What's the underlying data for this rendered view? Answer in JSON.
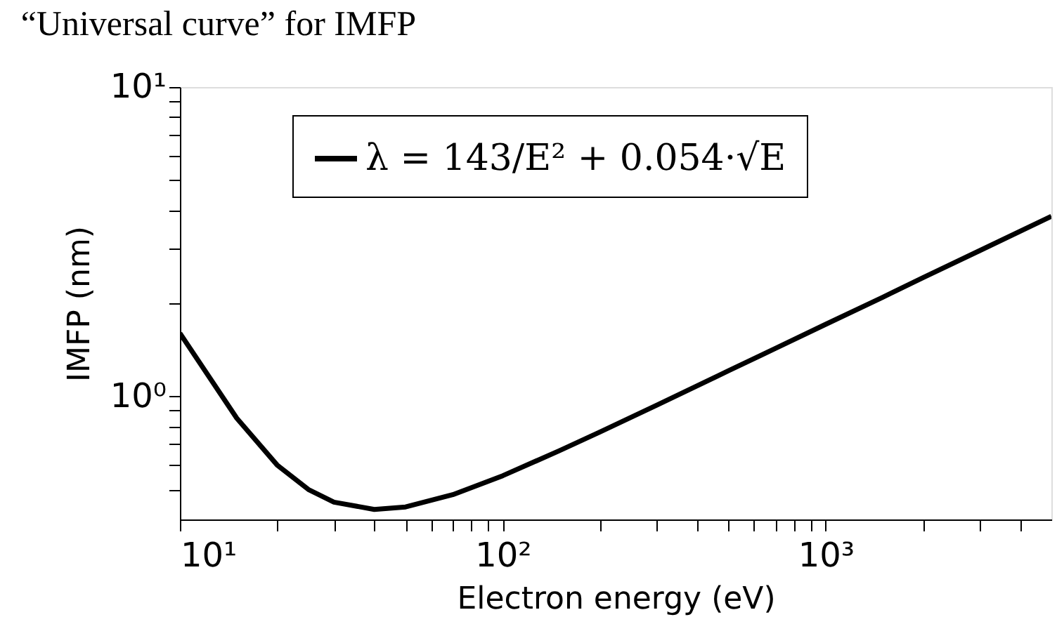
{
  "chart_data": {
    "type": "line",
    "title": "“Universal curve” for IMFP",
    "xlabel": "Electron energy (eV)",
    "ylabel": "IMFP (nm)",
    "x": [
      10,
      15,
      20,
      25,
      30,
      40,
      50,
      70,
      100,
      150,
      200,
      300,
      500,
      700,
      1000,
      1500,
      2000,
      3000,
      5000
    ],
    "series": [
      {
        "name": "λ = 143/E² + 0.054·√E",
        "color": "#000000",
        "values": [
          1.6,
          0.85,
          0.6,
          0.5,
          0.455,
          0.431,
          0.439,
          0.481,
          0.554,
          0.668,
          0.767,
          0.937,
          1.21,
          1.43,
          1.71,
          2.09,
          2.42,
          2.96,
          3.82
        ]
      }
    ],
    "log": "xy",
    "xlim": [
      10,
      5000
    ],
    "ylim": [
      0.4,
      10
    ],
    "xticks": [
      {
        "value": 10,
        "label": "10¹"
      },
      {
        "value": 20,
        "label": null
      },
      {
        "value": 30,
        "label": null
      },
      {
        "value": 40,
        "label": null
      },
      {
        "value": 50,
        "label": null
      },
      {
        "value": 60,
        "label": null
      },
      {
        "value": 70,
        "label": null
      },
      {
        "value": 80,
        "label": null
      },
      {
        "value": 90,
        "label": null
      },
      {
        "value": 100,
        "label": "10²"
      },
      {
        "value": 200,
        "label": null
      },
      {
        "value": 300,
        "label": null
      },
      {
        "value": 400,
        "label": null
      },
      {
        "value": 500,
        "label": null
      },
      {
        "value": 600,
        "label": null
      },
      {
        "value": 700,
        "label": null
      },
      {
        "value": 800,
        "label": null
      },
      {
        "value": 900,
        "label": null
      },
      {
        "value": 1000,
        "label": "10³"
      },
      {
        "value": 2000,
        "label": null
      },
      {
        "value": 3000,
        "label": null
      },
      {
        "value": 4000,
        "label": null
      }
    ],
    "yticks": [
      {
        "value": 0.5,
        "label": null
      },
      {
        "value": 0.6,
        "label": null
      },
      {
        "value": 0.7,
        "label": null
      },
      {
        "value": 0.8,
        "label": null
      },
      {
        "value": 0.9,
        "label": null
      },
      {
        "value": 1,
        "label": "10⁰"
      },
      {
        "value": 2,
        "label": null
      },
      {
        "value": 3,
        "label": null
      },
      {
        "value": 4,
        "label": null
      },
      {
        "value": 5,
        "label": null
      },
      {
        "value": 6,
        "label": null
      },
      {
        "value": 7,
        "label": null
      },
      {
        "value": 8,
        "label": null
      },
      {
        "value": 9,
        "label": null
      },
      {
        "value": 10,
        "label": "10¹"
      }
    ],
    "grid": false,
    "legend": "top",
    "marker": "none",
    "line_style": "solid"
  }
}
